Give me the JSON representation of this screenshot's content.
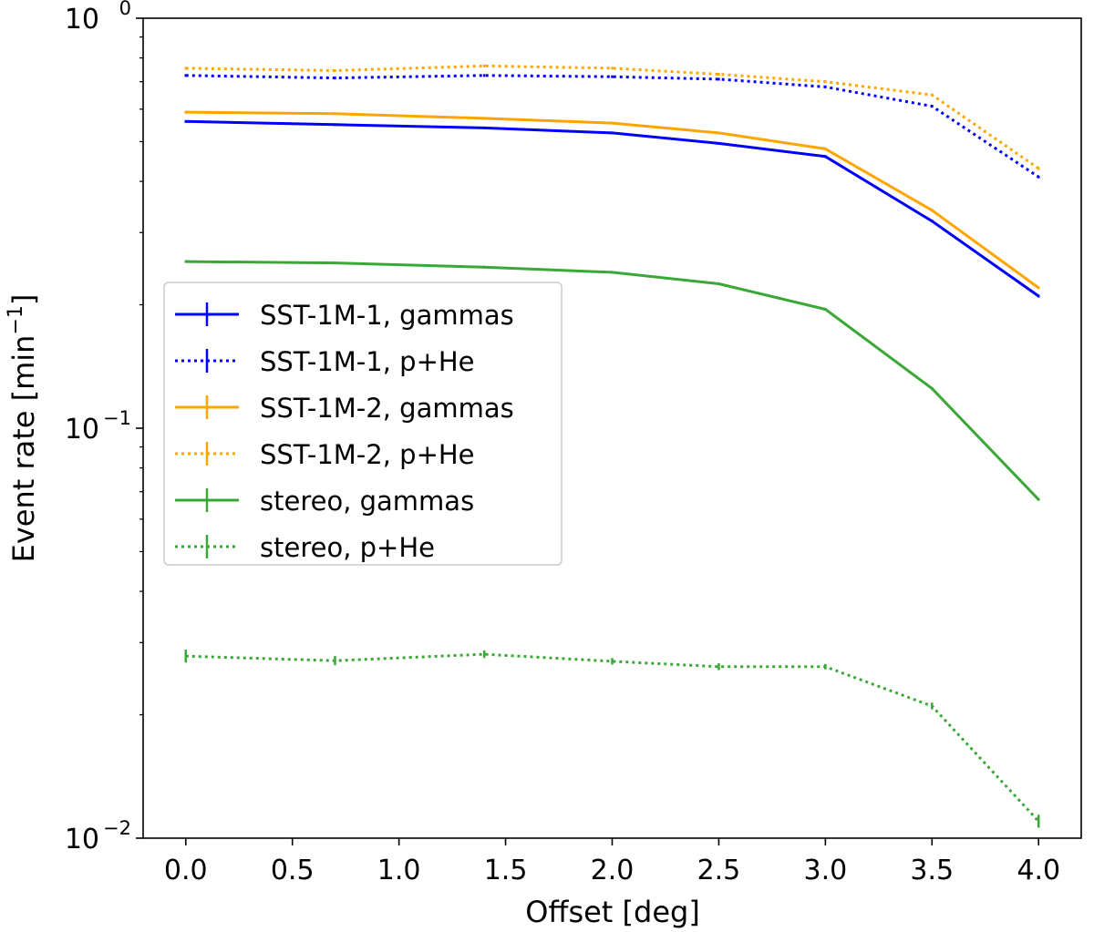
{
  "chart_data": {
    "type": "line",
    "title": "",
    "xlabel": "Offset [deg]",
    "ylabel_main": "Event rate [min",
    "ylabel_exp": "−1",
    "ylabel_close": "]",
    "yscale": "log",
    "xlim": [
      -0.2,
      4.2
    ],
    "ylim": [
      0.01,
      1.0
    ],
    "x_ticks": [
      {
        "value": 0.0,
        "label": "0.0"
      },
      {
        "value": 0.5,
        "label": "0.5"
      },
      {
        "value": 1.0,
        "label": "1.0"
      },
      {
        "value": 1.5,
        "label": "1.5"
      },
      {
        "value": 2.0,
        "label": "2.0"
      },
      {
        "value": 2.5,
        "label": "2.5"
      },
      {
        "value": 3.0,
        "label": "3.0"
      },
      {
        "value": 3.5,
        "label": "3.5"
      },
      {
        "value": 4.0,
        "label": "4.0"
      }
    ],
    "y_ticks": [
      {
        "value": 1.0,
        "base": "10",
        "exp": "0"
      },
      {
        "value": 0.1,
        "base": "10",
        "exp": "−1"
      },
      {
        "value": 0.01,
        "base": "10",
        "exp": "−2"
      }
    ],
    "grid": false,
    "legend_position": "center-left",
    "x": [
      0.0,
      0.7,
      1.4,
      2.0,
      2.5,
      3.0,
      3.5,
      4.0
    ],
    "series": [
      {
        "name": "SST-1M-1, gammas",
        "color": "#0000ff",
        "style": "solid",
        "values": [
          0.56,
          0.55,
          0.54,
          0.525,
          0.495,
          0.46,
          0.32,
          0.21
        ]
      },
      {
        "name": "SST-1M-1, p+He",
        "color": "#0000ff",
        "style": "dotted",
        "values": [
          0.725,
          0.715,
          0.725,
          0.72,
          0.71,
          0.68,
          0.61,
          0.41
        ]
      },
      {
        "name": "SST-1M-2, gammas",
        "color": "#ffa500",
        "style": "solid",
        "values": [
          0.59,
          0.585,
          0.57,
          0.555,
          0.525,
          0.48,
          0.34,
          0.22
        ]
      },
      {
        "name": "SST-1M-2, p+He",
        "color": "#ffa500",
        "style": "dotted",
        "values": [
          0.755,
          0.745,
          0.765,
          0.755,
          0.73,
          0.7,
          0.65,
          0.43
        ]
      },
      {
        "name": "stereo, gammas",
        "color": "#3aa836",
        "style": "solid",
        "values": [
          0.255,
          0.253,
          0.247,
          0.24,
          0.225,
          0.195,
          0.125,
          0.067
        ]
      },
      {
        "name": "stereo, p+He",
        "color": "#3aa836",
        "style": "dotted",
        "values": [
          0.0278,
          0.0271,
          0.0281,
          0.027,
          0.0262,
          0.0262,
          0.021,
          0.011
        ],
        "errors": [
          0.001,
          0.0007,
          0.0006,
          0.0005,
          0.0005,
          0.0004,
          0.0004,
          0.0004
        ]
      }
    ]
  }
}
